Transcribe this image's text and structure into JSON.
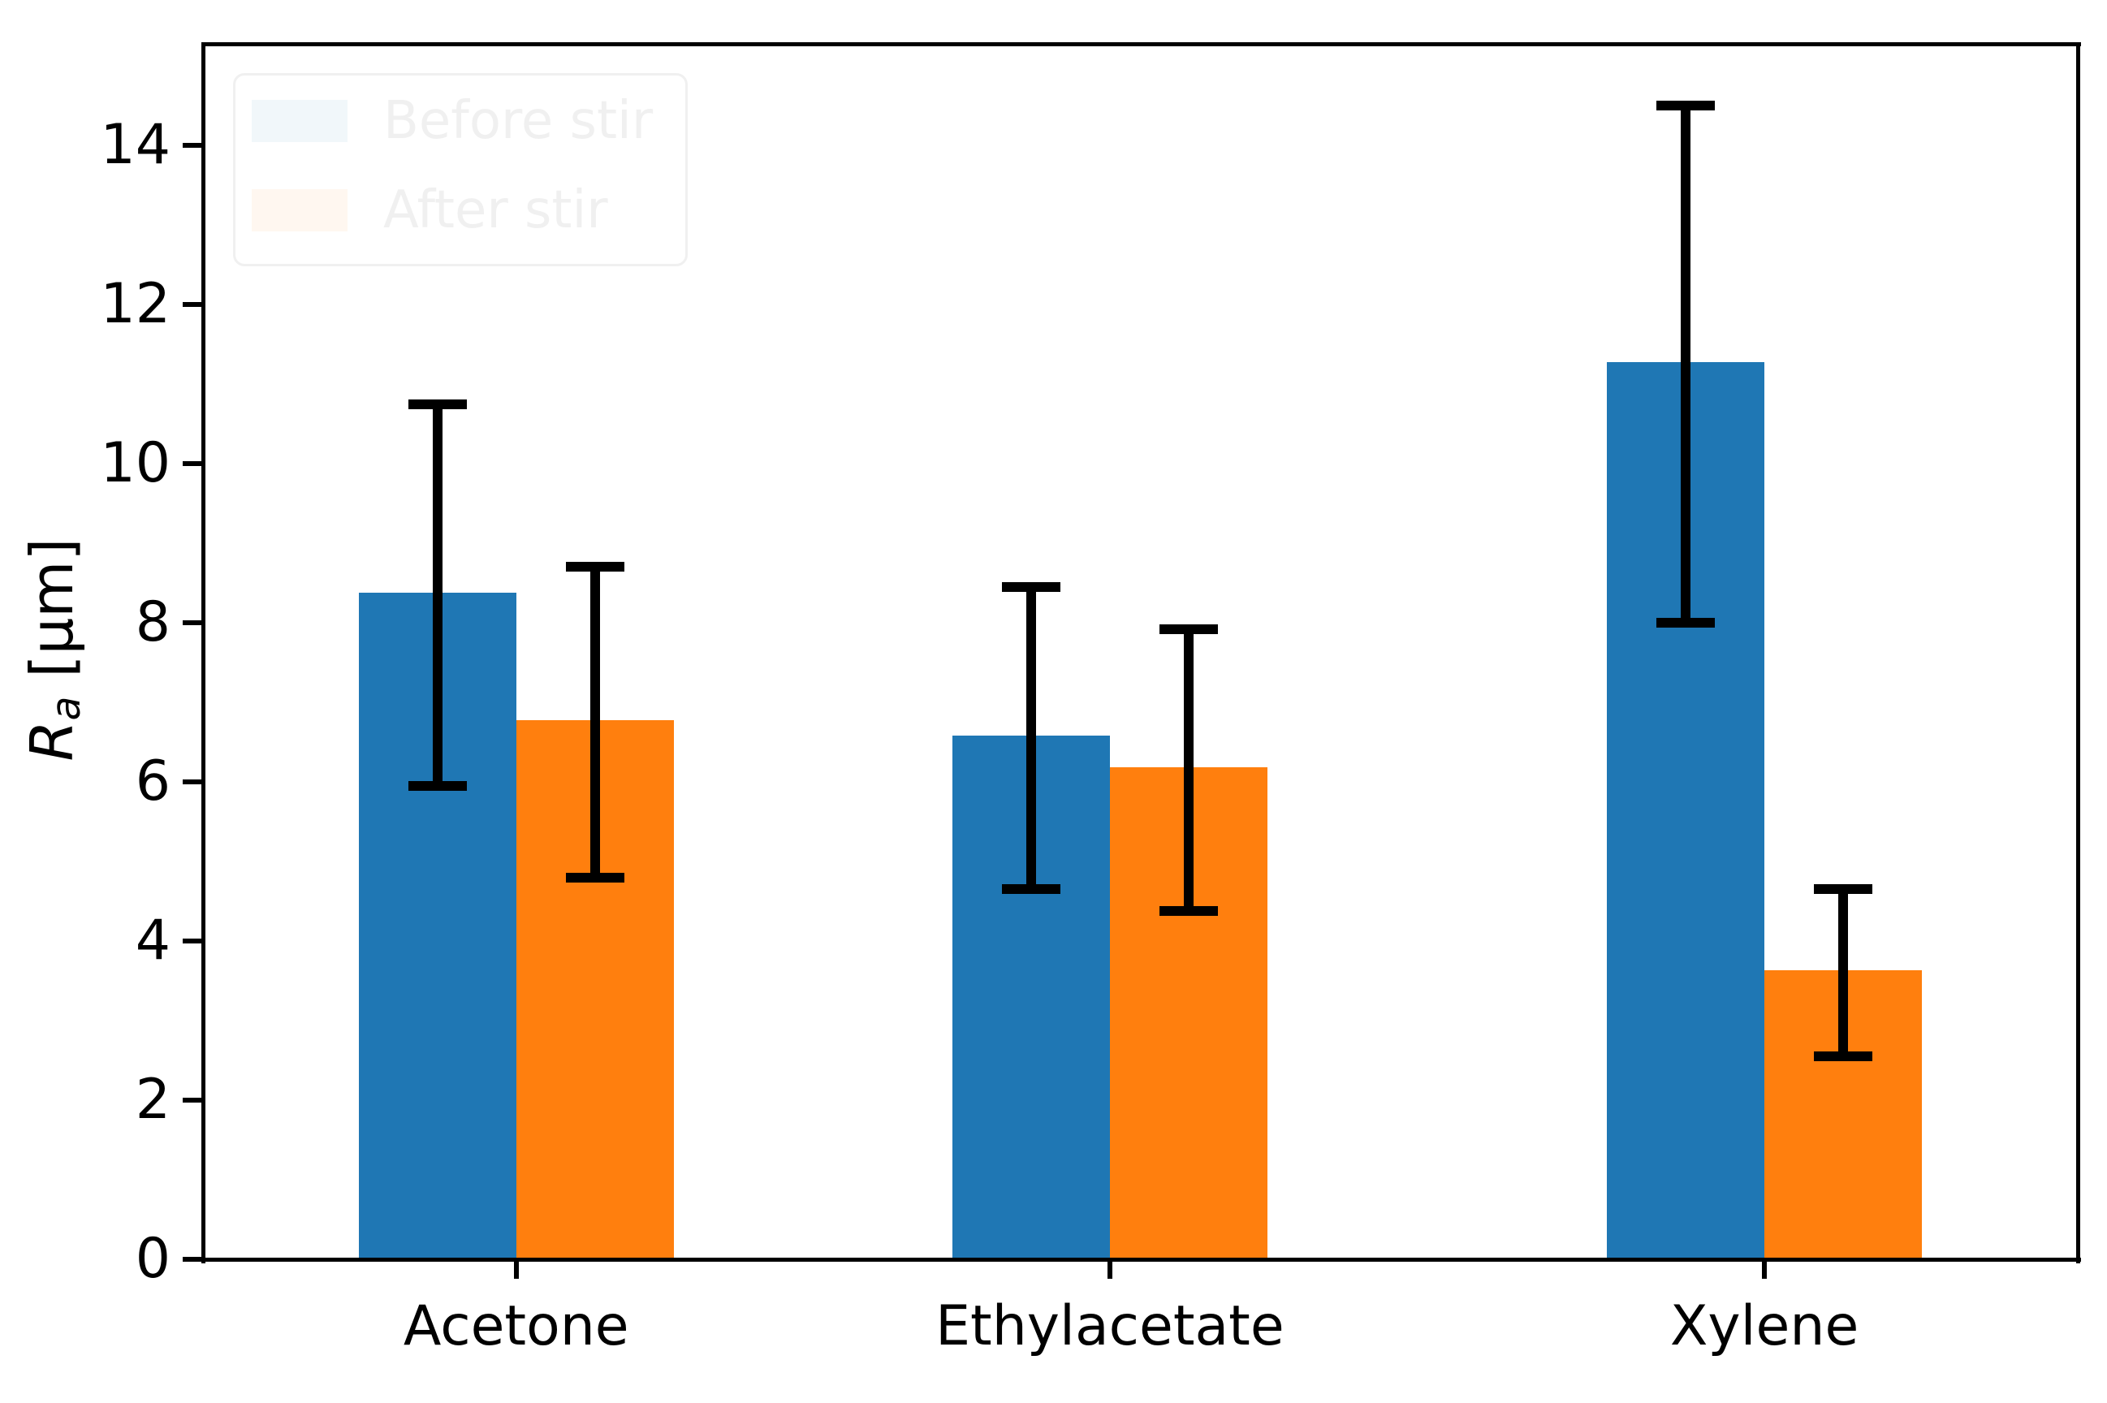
{
  "figure": {
    "background": "#ffffff",
    "ylabel": {
      "symbol": "R",
      "sub": "a",
      "unit": " [μm]"
    },
    "legend": {
      "position": "upper left",
      "opacity": 0.055,
      "items": [
        {
          "label": "Before stir",
          "color": "#1f77b4"
        },
        {
          "label": "After stir",
          "color": "#ff7f0e"
        }
      ]
    },
    "axis_color": "#000000"
  },
  "chart_data": {
    "type": "bar",
    "categories": [
      "Acetone",
      "Ethylacetate",
      "Xylene"
    ],
    "series": [
      {
        "name": "Before stir",
        "color": "#1f77b4",
        "values": [
          8.35,
          6.55,
          11.25
        ],
        "errors": [
          2.4,
          1.9,
          3.25
        ]
      },
      {
        "name": "After stir",
        "color": "#ff7f0e",
        "values": [
          6.75,
          6.15,
          3.6
        ],
        "errors": [
          1.95,
          1.77,
          1.05
        ]
      }
    ],
    "error_bar_color": "#000000",
    "title": "",
    "xlabel": "",
    "ylabel": "R_a [μm]",
    "ylim": [
      0,
      15.27
    ],
    "yticks": [
      0,
      2,
      4,
      6,
      8,
      10,
      12,
      14
    ],
    "grid": false,
    "legend_position": "upper left"
  }
}
